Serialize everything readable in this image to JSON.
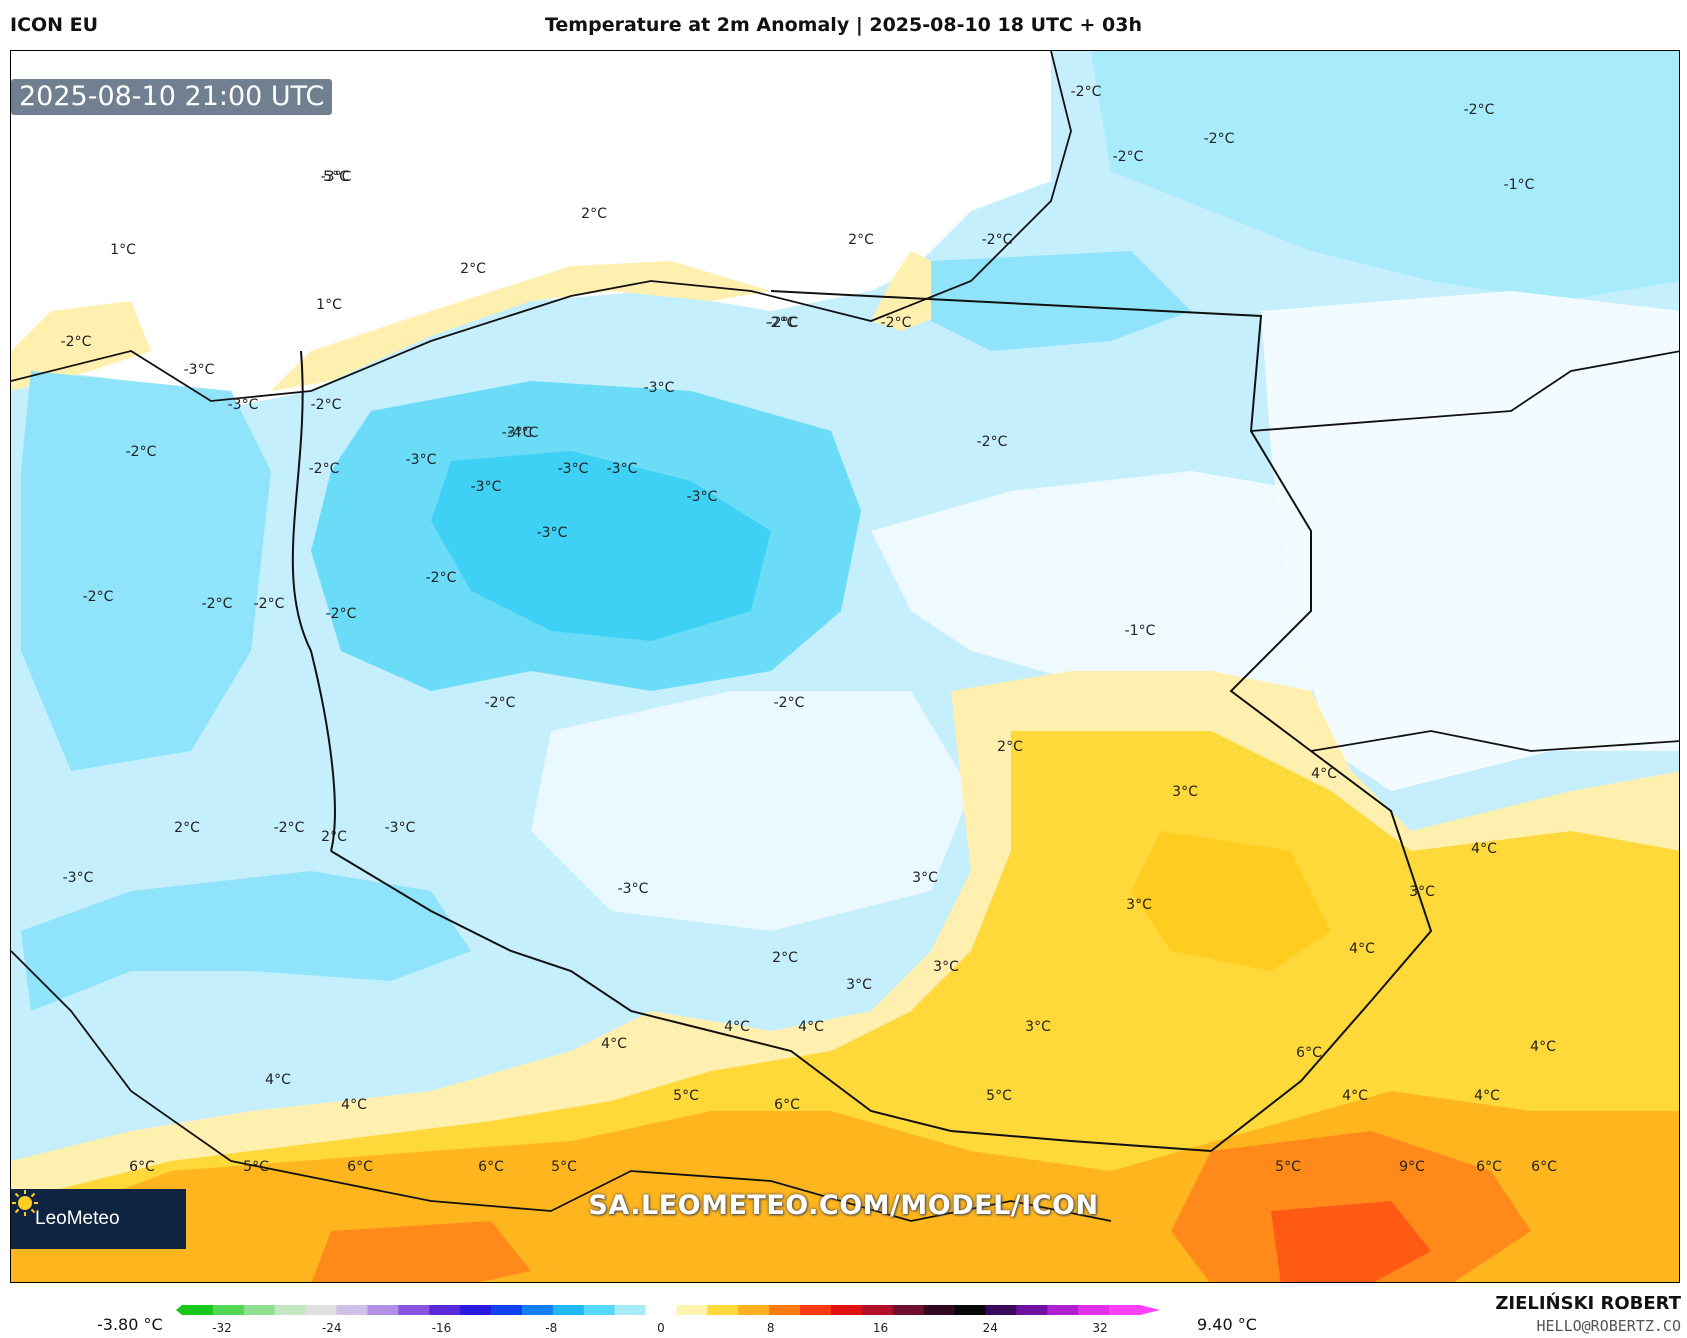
{
  "header": {
    "model": "ICON EU",
    "title": "Temperature at 2m Anomaly | 2025-08-10 18 UTC + 03h"
  },
  "map": {
    "timestamp": "2025-08-10 21:00 UTC",
    "watermark": "SA.LEOMETEO.COM/MODEL/ICON",
    "logo_text": "LeoMeteo",
    "labels": [
      "-3°C",
      "-2°C",
      "-2°C",
      "-2°C",
      "-2°C",
      "-1°C",
      "-2°C",
      "-2°C",
      "-2°C",
      "1°C",
      "2°C",
      "2°C",
      "1°C",
      "2°C",
      "-2°C",
      "-2°C",
      "-2°C",
      "-3°C",
      "-2°C",
      "-3°C",
      "-2°C",
      "-2°C",
      "-3°C",
      "-3°C",
      "-3°C",
      "-4°C",
      "-3°C",
      "-3°C",
      "-3°C",
      "-3°C",
      "-3°C",
      "-2°C",
      "-2°C",
      "-2°C",
      "-2°C",
      "-2°C",
      "-2°C",
      "-2°C",
      "-1°C",
      "2°C",
      "3°C",
      "4°C",
      "3°C",
      "3°C",
      "2°C",
      "-2°C",
      "2°C",
      "-3°C",
      "-3°C",
      "-3°C",
      "2°C",
      "3°C",
      "3°C",
      "4°C",
      "3°C",
      "4°C",
      "3°C",
      "4°C",
      "4°C",
      "4°C",
      "4°C",
      "4°C",
      "4°C",
      "6°C",
      "5°C",
      "5°C",
      "4°C",
      "6°C",
      "4°C",
      "5°C",
      "6°C",
      "6°C",
      "6°C",
      "5°C",
      "5°C",
      "9°C",
      "6°C",
      "6°C",
      "5°C"
    ],
    "label_colors": {
      "cold_deep": "#3fd1f5",
      "cold": "#8fe3fa",
      "cold_light": "#d8f4fd",
      "neutral": "#ffffff",
      "warm_light": "#fff0b0",
      "warm": "#ffd83a",
      "warm_mid": "#ffb61e",
      "warm_hot": "#ff8a1a",
      "hot": "#ff5a14"
    }
  },
  "colorbar": {
    "min_label": "-3.80 °C",
    "max_label": "9.40 °C",
    "ticks": [
      "-32",
      "-24",
      "-16",
      "-8",
      "0",
      "8",
      "16",
      "24",
      "32"
    ],
    "stops": [
      "#18c818",
      "#52d852",
      "#8ee08e",
      "#c4e8c4",
      "#e0e0e0",
      "#cfc0ea",
      "#b28fe6",
      "#8a55e0",
      "#5a2ad8",
      "#2a1ae0",
      "#1040f0",
      "#1280f0",
      "#20b8f5",
      "#56d8fa",
      "#a8ecfc",
      "#ffffff",
      "#fff3b0",
      "#ffd83a",
      "#ffb020",
      "#ff7a10",
      "#ff3a10",
      "#e01010",
      "#b0102a",
      "#701030",
      "#300820",
      "#080808",
      "#3a0a5a",
      "#7010a0",
      "#b020d0",
      "#e030e8",
      "#ff40ff"
    ]
  },
  "credits": {
    "name": "ZIELIŃSKI ROBERT",
    "email": "HELLO@ROBERTZ.CO"
  }
}
